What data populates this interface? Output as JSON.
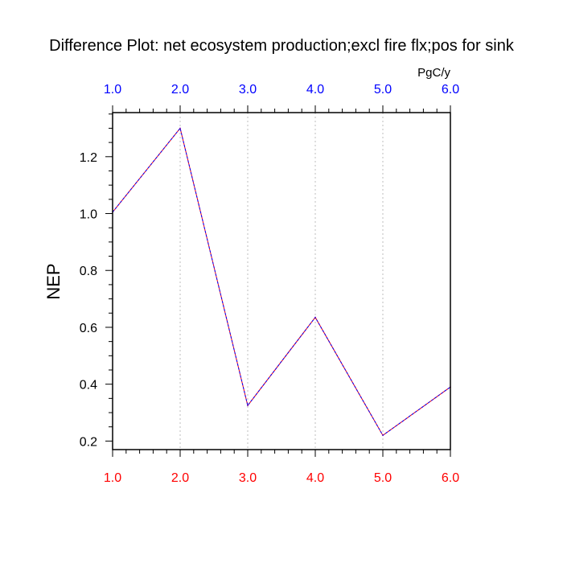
{
  "chart_data": {
    "type": "line",
    "title": "Difference Plot: net ecosystem production;excl fire flx;pos for sink",
    "units_label": "PgC/y",
    "ylabel": "NEP",
    "x": [
      1.0,
      2.0,
      3.0,
      4.0,
      5.0,
      6.0
    ],
    "series": [
      {
        "values": [
          1.005,
          1.3,
          0.325,
          0.635,
          0.22,
          0.39
        ],
        "color": "#5a00c8"
      }
    ],
    "xlim": [
      1.0,
      6.0
    ],
    "ylim": [
      0.17,
      1.355
    ],
    "bottom_tick_labels": [
      "1.0",
      "2.0",
      "3.0",
      "4.0",
      "5.0",
      "6.0"
    ],
    "top_tick_labels": [
      "1.0",
      "2.0",
      "3.0",
      "4.0",
      "5.0",
      "6.0"
    ],
    "y_ticks": [
      0.2,
      0.4,
      0.6,
      0.8,
      1.0,
      1.2
    ],
    "y_tick_labels": [
      "0.2",
      "0.4",
      "0.6",
      "0.8",
      "1.0",
      "1.2"
    ],
    "bottom_tick_color": "#ff0000",
    "top_tick_color": "#0000ff",
    "grid": "vertical-dotted"
  }
}
